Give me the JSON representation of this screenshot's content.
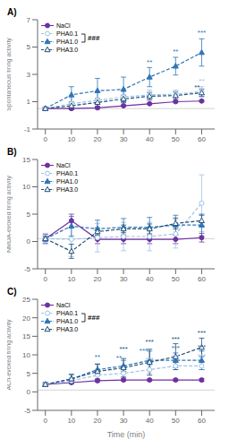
{
  "chart_data": [
    {
      "type": "line",
      "title": "A)",
      "ylabel": "Spontaneous firing activity",
      "x": [
        0,
        10,
        20,
        30,
        40,
        50,
        60
      ],
      "xlim": [
        -3,
        65
      ],
      "xticks": [
        0,
        10,
        20,
        30,
        40,
        50,
        60
      ],
      "ylim": [
        -1,
        7
      ],
      "yticks": [
        -1,
        1,
        3,
        5,
        7
      ],
      "grid": false,
      "legend": "upper left",
      "ref_line": 0.5,
      "series": [
        {
          "name": "NaCl",
          "color": "#7030a0",
          "marker": "circle",
          "line_style": "solid",
          "values": [
            0.5,
            0.5,
            0.55,
            0.7,
            0.85,
            1.0,
            1.05
          ],
          "errors": [
            0.05,
            0.05,
            0.05,
            0.05,
            0.05,
            0.05,
            0.05
          ]
        },
        {
          "name": "PHA0.1",
          "color": "#9dc3e6",
          "marker": "open_circle",
          "line_style": "dashed",
          "values": [
            0.5,
            0.85,
            1.1,
            1.35,
            1.5,
            1.55,
            1.75
          ],
          "errors": [
            0.1,
            0.45,
            0.65,
            0.55,
            0.35,
            0.3,
            0.35
          ]
        },
        {
          "name": "PHA1.0",
          "color": "#2e75b6",
          "marker": "triangle",
          "line_style": "dashed",
          "values": [
            0.5,
            1.5,
            1.8,
            1.9,
            2.8,
            3.6,
            4.6
          ],
          "errors": [
            0.1,
            0.6,
            0.9,
            0.9,
            0.7,
            0.65,
            1.0
          ]
        },
        {
          "name": "PHA3.0",
          "color": "#1f4e79",
          "marker": "open_triangle",
          "line_style": "dashed",
          "values": [
            0.5,
            0.7,
            0.95,
            1.2,
            1.4,
            1.45,
            1.65
          ],
          "errors": [
            0.1,
            0.28,
            0.28,
            0.28,
            0.28,
            0.28,
            0.28
          ]
        }
      ],
      "annotations": [
        {
          "text": "###"
        },
        {
          "x": 40,
          "y": 3.6,
          "text": "**",
          "color": "#2e75b6"
        },
        {
          "x": 50,
          "y": 4.35,
          "text": "**",
          "color": "#2e75b6"
        },
        {
          "x": 60,
          "y": 5.75,
          "text": "***",
          "color": "#2e75b6"
        },
        {
          "x": 60,
          "y": 2.2,
          "text": "**",
          "color": "#9dc3e6"
        },
        {
          "x": 60,
          "y": 2.05,
          "text": "**",
          "color": "#1f4e79"
        }
      ]
    },
    {
      "type": "line",
      "title": "B)",
      "ylabel": "NMDA-evoked firing activity",
      "x": [
        0,
        10,
        20,
        30,
        40,
        50,
        60
      ],
      "xlim": [
        -3,
        65
      ],
      "xticks": [
        0,
        10,
        20,
        30,
        40,
        50,
        60
      ],
      "ylim": [
        -5,
        15
      ],
      "yticks": [
        -5,
        0,
        5,
        10,
        15
      ],
      "grid": false,
      "legend": "upper left",
      "ref_line": 0.5,
      "series": [
        {
          "name": "NaCl",
          "color": "#7030a0",
          "marker": "circle",
          "line_style": "solid",
          "values": [
            0.5,
            3.8,
            0.4,
            0.4,
            0.4,
            0.4,
            0.7
          ],
          "errors": [
            0.8,
            1.2,
            0.8,
            0.8,
            0.8,
            0.8,
            0.8
          ]
        },
        {
          "name": "PHA0.1",
          "color": "#9dc3e6",
          "marker": "open_circle",
          "line_style": "dashed",
          "values": [
            0.5,
            0.4,
            0.7,
            0.9,
            0.9,
            1.4,
            7.0
          ],
          "errors": [
            1.0,
            3.2,
            2.6,
            2.6,
            2.6,
            2.6,
            5.2
          ]
        },
        {
          "name": "PHA1.0",
          "color": "#2e75b6",
          "marker": "triangle",
          "line_style": "dashed",
          "values": [
            0.5,
            2.8,
            2.3,
            2.6,
            2.6,
            3.0,
            3.0
          ],
          "errors": [
            0.5,
            1.8,
            1.6,
            1.6,
            1.8,
            1.8,
            2.0
          ]
        },
        {
          "name": "PHA3.0",
          "color": "#1f4e79",
          "marker": "open_triangle",
          "line_style": "dashed",
          "values": [
            0.5,
            -1.8,
            1.8,
            2.3,
            2.3,
            3.3,
            3.8
          ],
          "errors": [
            0.3,
            1.3,
            0.7,
            0.7,
            0.9,
            1.0,
            1.0
          ]
        }
      ]
    },
    {
      "type": "line",
      "title": "C)",
      "ylabel": "ACh-evoked firing activity",
      "xlabel": "Time (min)",
      "x": [
        0,
        10,
        20,
        30,
        40,
        50,
        60
      ],
      "xlim": [
        -3,
        65
      ],
      "xticks": [
        0,
        10,
        20,
        30,
        40,
        50,
        60
      ],
      "ylim": [
        -5,
        25
      ],
      "yticks": [
        -5,
        0,
        5,
        10,
        15,
        20,
        25
      ],
      "grid": false,
      "legend": "upper left",
      "ref_line": 0.5,
      "series": [
        {
          "name": "NaCl",
          "color": "#7030a0",
          "marker": "circle",
          "line_style": "solid",
          "values": [
            2.0,
            2.5,
            3.0,
            3.2,
            3.2,
            3.2,
            3.2
          ],
          "errors": [
            0.2,
            0.3,
            0.3,
            0.3,
            0.3,
            0.3,
            0.4
          ]
        },
        {
          "name": "PHA0.1",
          "color": "#9dc3e6",
          "marker": "open_circle",
          "line_style": "dashed",
          "values": [
            2.0,
            3.0,
            4.5,
            5.0,
            6.0,
            7.0,
            7.0
          ],
          "errors": [
            0.4,
            0.8,
            1.5,
            1.2,
            1.0,
            1.0,
            1.0
          ]
        },
        {
          "name": "PHA1.0",
          "color": "#2e75b6",
          "marker": "triangle",
          "line_style": "dashed",
          "values": [
            2.0,
            3.5,
            6.0,
            7.0,
            8.5,
            8.5,
            8.5
          ],
          "errors": [
            0.5,
            1.2,
            1.5,
            1.5,
            2.5,
            2.0,
            2.5
          ]
        },
        {
          "name": "PHA3.0",
          "color": "#1f4e79",
          "marker": "open_triangle",
          "line_style": "dashed",
          "values": [
            2.0,
            3.5,
            5.5,
            6.5,
            8.0,
            9.5,
            12.0
          ],
          "errors": [
            0.5,
            1.2,
            2.0,
            2.5,
            3.5,
            3.5,
            2.5
          ]
        }
      ],
      "annotations": [
        {
          "text": "###"
        },
        {
          "x": 20,
          "y": 8.2,
          "text": "**",
          "color": "#2e75b6"
        },
        {
          "x": 30,
          "y": 9.2,
          "text": "**",
          "color": "#2e75b6"
        },
        {
          "x": 30,
          "y": 10.5,
          "text": "***",
          "color": "#1f4e79"
        },
        {
          "x": 40,
          "y": 11.2,
          "text": "***",
          "color": "#2e75b6"
        },
        {
          "x": 40,
          "y": 12.5,
          "text": "***",
          "color": "#1f4e79"
        },
        {
          "x": 40,
          "y": 7.5,
          "text": "***",
          "color": "#9dc3e6"
        },
        {
          "x": 50,
          "y": 10.8,
          "text": "***",
          "color": "#2e75b6"
        },
        {
          "x": 50,
          "y": 13.2,
          "text": "***",
          "color": "#1f4e79"
        },
        {
          "x": 50,
          "y": 8.2,
          "text": "***",
          "color": "#9dc3e6"
        },
        {
          "x": 60,
          "y": 11.0,
          "text": "***",
          "color": "#2e75b6"
        },
        {
          "x": 60,
          "y": 14.8,
          "text": "***",
          "color": "#1f4e79"
        },
        {
          "x": 60,
          "y": 8.5,
          "text": "***",
          "color": "#9dc3e6"
        }
      ]
    }
  ]
}
